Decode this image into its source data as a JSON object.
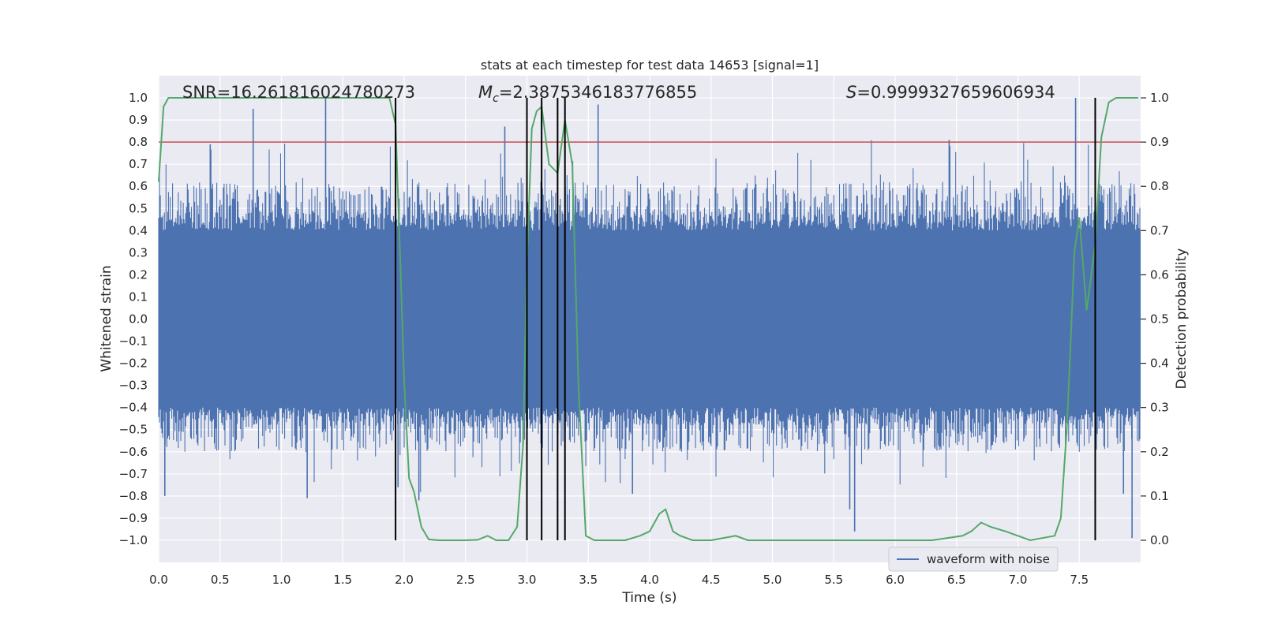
{
  "chart_data": {
    "type": "line",
    "title": "stats at each timestep for test data 14653 [signal=1]",
    "xlabel": "Time (s)",
    "ylabel_left": "Whitened strain",
    "ylabel_right": "Detection probability",
    "xlim": [
      0.0,
      8.0
    ],
    "ylim_left": [
      -1.1,
      1.1
    ],
    "ylim_right": [
      -0.05,
      1.05
    ],
    "x_ticks": [
      "0.0",
      "0.5",
      "1.0",
      "1.5",
      "2.0",
      "2.5",
      "3.0",
      "3.5",
      "4.0",
      "4.5",
      "5.0",
      "5.5",
      "6.0",
      "6.5",
      "7.0",
      "7.5"
    ],
    "y_ticks_left": [
      "1.0",
      "0.9",
      "0.8",
      "0.7",
      "0.6",
      "0.5",
      "0.4",
      "0.3",
      "0.2",
      "0.1",
      "0.0",
      "−0.1",
      "−0.2",
      "−0.3",
      "−0.4",
      "−0.5",
      "−0.6",
      "−0.7",
      "−0.8",
      "−0.9",
      "−1.0"
    ],
    "y_ticks_right": [
      "1.0",
      "0.9",
      "0.8",
      "0.7",
      "0.6",
      "0.5",
      "0.4",
      "0.3",
      "0.2",
      "0.1",
      "0.0"
    ],
    "grid": true,
    "legend": {
      "placement": "lower-right",
      "entries": [
        "waveform with noise"
      ]
    },
    "annotations": {
      "snr": "SNR=16.261816024780273",
      "mc_symbol": "M",
      "mc_subscript": "c",
      "mc_value": "=2.3875346183776855",
      "s_symbol": "S",
      "s_value": "=0.9999327659606934"
    },
    "threshold": {
      "axis": "left",
      "value": 0.8
    },
    "vertical_markers": [
      1.93,
      3.0,
      3.12,
      3.25,
      3.31,
      7.63
    ],
    "strain_series": {
      "name": "waveform with noise",
      "description_note": "dense noisy whitened strain, bulk range about -0.4 to 0.4, spikes to about +/-1.0",
      "envelope_upper_typical": 0.62,
      "envelope_lower_typical": -0.6,
      "core_abs": 0.4,
      "spikes": [
        [
          0.05,
          -0.8
        ],
        [
          0.42,
          0.79
        ],
        [
          0.77,
          0.95
        ],
        [
          1.21,
          -0.81
        ],
        [
          1.36,
          1.0
        ],
        [
          1.95,
          -0.76
        ],
        [
          2.12,
          -0.82
        ],
        [
          2.82,
          0.87
        ],
        [
          3.12,
          0.98
        ],
        [
          3.58,
          0.97
        ],
        [
          3.86,
          -0.79
        ],
        [
          5.63,
          -0.86
        ],
        [
          5.67,
          -0.96
        ],
        [
          6.44,
          0.81
        ],
        [
          7.47,
          1.0
        ],
        [
          7.86,
          -0.79
        ],
        [
          7.93,
          -0.99
        ]
      ]
    },
    "probability_series": {
      "axis": "right",
      "x": [
        0.0,
        0.04,
        0.08,
        0.15,
        0.5,
        1.0,
        1.5,
        1.8,
        1.88,
        1.93,
        1.97,
        2.0,
        2.04,
        2.08,
        2.14,
        2.2,
        2.28,
        2.35,
        2.5,
        2.6,
        2.68,
        2.75,
        2.85,
        2.92,
        2.97,
        3.0,
        3.04,
        3.08,
        3.12,
        3.18,
        3.25,
        3.31,
        3.37,
        3.42,
        3.48,
        3.55,
        3.65,
        3.8,
        3.92,
        4.0,
        4.08,
        4.13,
        4.19,
        4.25,
        4.35,
        4.5,
        4.7,
        4.8,
        5.0,
        5.5,
        5.9,
        6.0,
        6.3,
        6.55,
        6.62,
        6.7,
        6.78,
        6.9,
        7.0,
        7.1,
        7.3,
        7.35,
        7.4,
        7.43,
        7.46,
        7.5,
        7.56,
        7.63,
        7.68,
        7.74,
        7.8,
        7.84,
        7.9,
        7.98
      ],
      "values": [
        0.81,
        0.98,
        1.0,
        1.0,
        1.0,
        1.0,
        1.0,
        1.0,
        1.0,
        0.94,
        0.62,
        0.36,
        0.14,
        0.11,
        0.03,
        0.002,
        0.0,
        0.0,
        0.0,
        0.001,
        0.01,
        0.0,
        0.0,
        0.03,
        0.22,
        0.63,
        0.93,
        0.97,
        0.98,
        0.85,
        0.83,
        0.95,
        0.85,
        0.35,
        0.01,
        0.0,
        0.0,
        0.0,
        0.01,
        0.02,
        0.06,
        0.07,
        0.02,
        0.01,
        0.0,
        0.0,
        0.01,
        0.0,
        0.0,
        0.0,
        0.0,
        0.0,
        0.0,
        0.01,
        0.02,
        0.04,
        0.03,
        0.02,
        0.01,
        0.0,
        0.01,
        0.05,
        0.26,
        0.45,
        0.65,
        0.73,
        0.52,
        0.67,
        0.91,
        0.99,
        1.0,
        1.0,
        1.0,
        1.0
      ]
    },
    "colors": {
      "background": "#eaeaf2",
      "grid": "#ffffff",
      "strain": "#4c72b0",
      "probability": "#55a868",
      "threshold": "#c44e52",
      "markers": "#000000"
    }
  }
}
